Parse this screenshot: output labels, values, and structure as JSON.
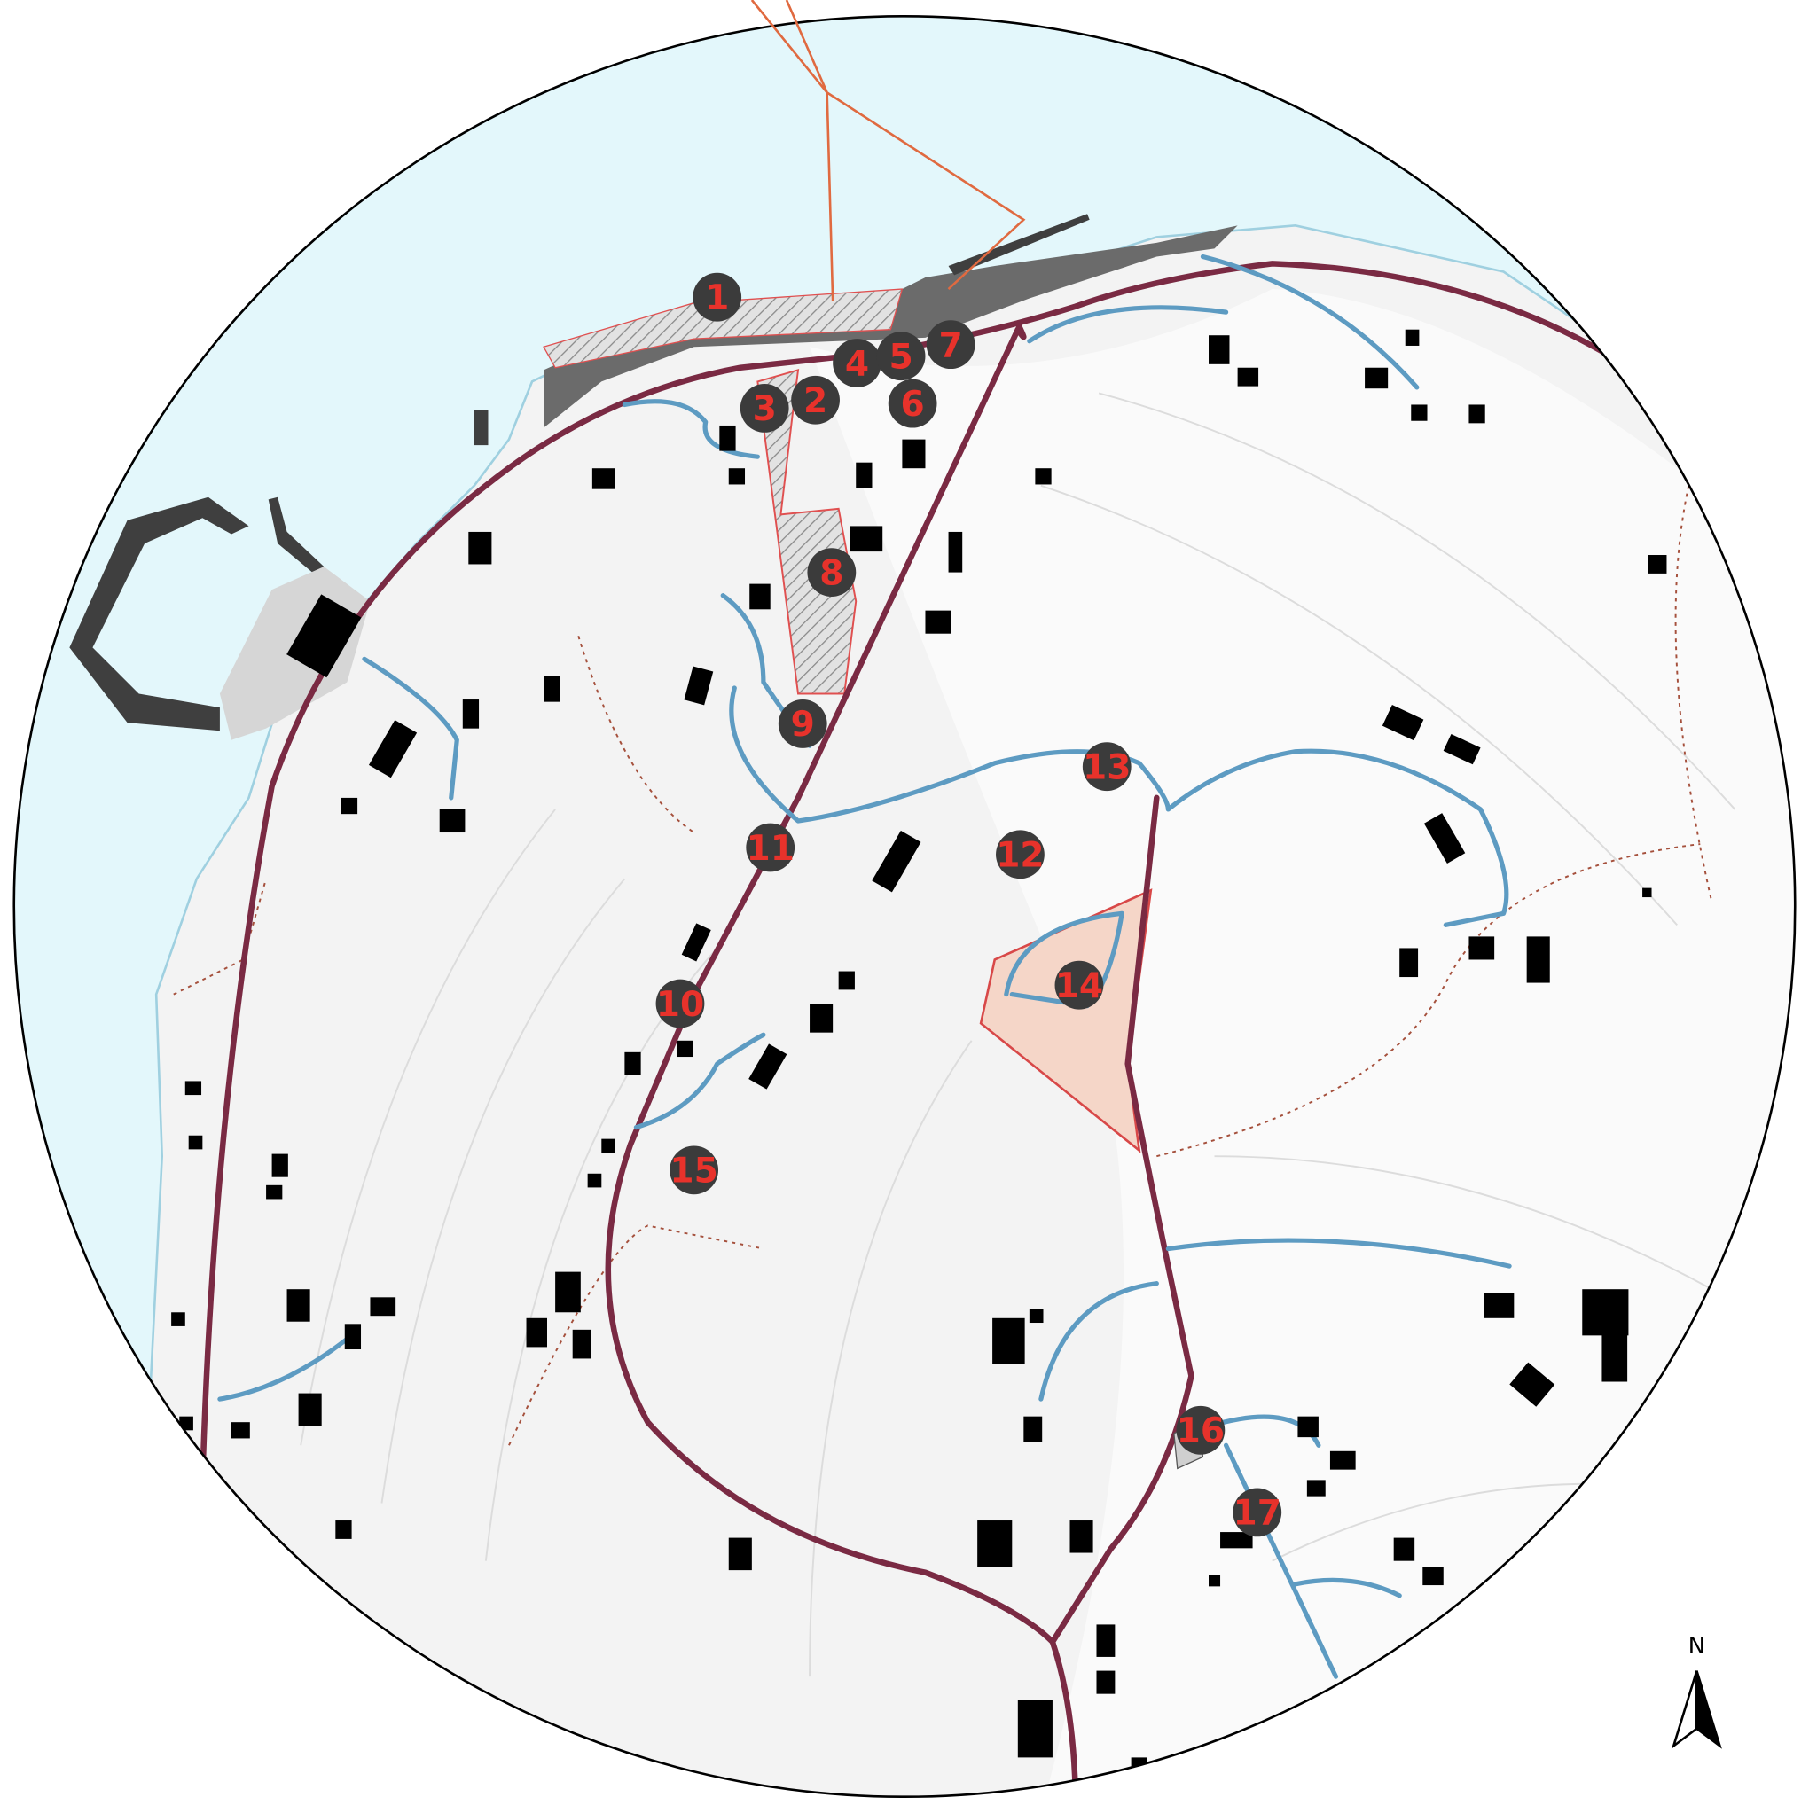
{
  "markers": [
    {
      "label": "1"
    },
    {
      "label": "2"
    },
    {
      "label": "3"
    },
    {
      "label": "4"
    },
    {
      "label": "5"
    },
    {
      "label": "6"
    },
    {
      "label": "7"
    },
    {
      "label": "8"
    },
    {
      "label": "9"
    },
    {
      "label": "10"
    },
    {
      "label": "11"
    },
    {
      "label": "12"
    },
    {
      "label": "13"
    },
    {
      "label": "14"
    },
    {
      "label": "15"
    },
    {
      "label": "16"
    },
    {
      "label": "17"
    }
  ],
  "north_label": "N"
}
